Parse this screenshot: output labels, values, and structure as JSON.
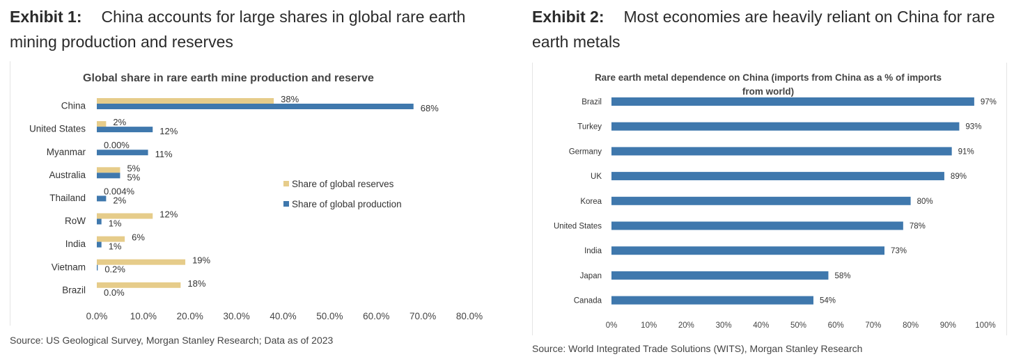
{
  "exhibit1": {
    "label": "Exhibit 1:",
    "title": "China accounts for large shares in global rare earth mining production and reserves",
    "source": "Source: US Geological Survey, Morgan Stanley Research; Data as of 2023"
  },
  "exhibit2": {
    "label": "Exhibit 2:",
    "title": "Most economies are heavily reliant on China for rare earth metals",
    "source": "Source: World Integrated Trade Solutions (WITS), Morgan Stanley Research"
  },
  "colors": {
    "reserves": "#E6CC8A",
    "production": "#3F78AD"
  },
  "chart_data": [
    {
      "type": "bar",
      "orientation": "horizontal",
      "title": "Global share in rare earth mine production and reserve",
      "categories": [
        "China",
        "United States",
        "Myanmar",
        "Australia",
        "Thailand",
        "RoW",
        "India",
        "Vietnam",
        "Brazil"
      ],
      "series": [
        {
          "name": "Share of global reserves",
          "values": [
            38,
            2,
            0,
            5,
            0.004,
            12,
            6,
            19,
            18
          ],
          "labels": [
            "38%",
            "2%",
            "0.00%",
            "5%",
            "0.004%",
            "12%",
            "6%",
            "19%",
            "18%"
          ]
        },
        {
          "name": "Share of global production",
          "values": [
            68,
            12,
            11,
            5,
            2,
            1,
            1,
            0.2,
            0
          ],
          "labels": [
            "68%",
            "12%",
            "11%",
            "5%",
            "2%",
            "1%",
            "1%",
            "0.2%",
            "0.0%"
          ]
        }
      ],
      "xlim": [
        0,
        80
      ],
      "xticks": [
        "0.0%",
        "10.0%",
        "20.0%",
        "30.0%",
        "40.0%",
        "50.0%",
        "60.0%",
        "70.0%",
        "80.0%"
      ],
      "legend_position": "center-right",
      "grid": false
    },
    {
      "type": "bar",
      "orientation": "horizontal",
      "title": "Rare earth metal dependence on China (imports from China as a % of imports from world)",
      "title_lines": [
        "Rare earth metal dependence on China (imports from China as a % of imports",
        "from world)"
      ],
      "categories": [
        "Brazil",
        "Turkey",
        "Germany",
        "UK",
        "Korea",
        "United States",
        "India",
        "Japan",
        "Canada"
      ],
      "values": [
        97,
        93,
        91,
        89,
        80,
        78,
        73,
        58,
        54
      ],
      "labels": [
        "97%",
        "93%",
        "91%",
        "89%",
        "80%",
        "78%",
        "73%",
        "58%",
        "54%"
      ],
      "xlim": [
        0,
        100
      ],
      "xticks": [
        "0%",
        "10%",
        "20%",
        "30%",
        "40%",
        "50%",
        "60%",
        "70%",
        "80%",
        "90%",
        "100%"
      ],
      "grid": false
    }
  ]
}
